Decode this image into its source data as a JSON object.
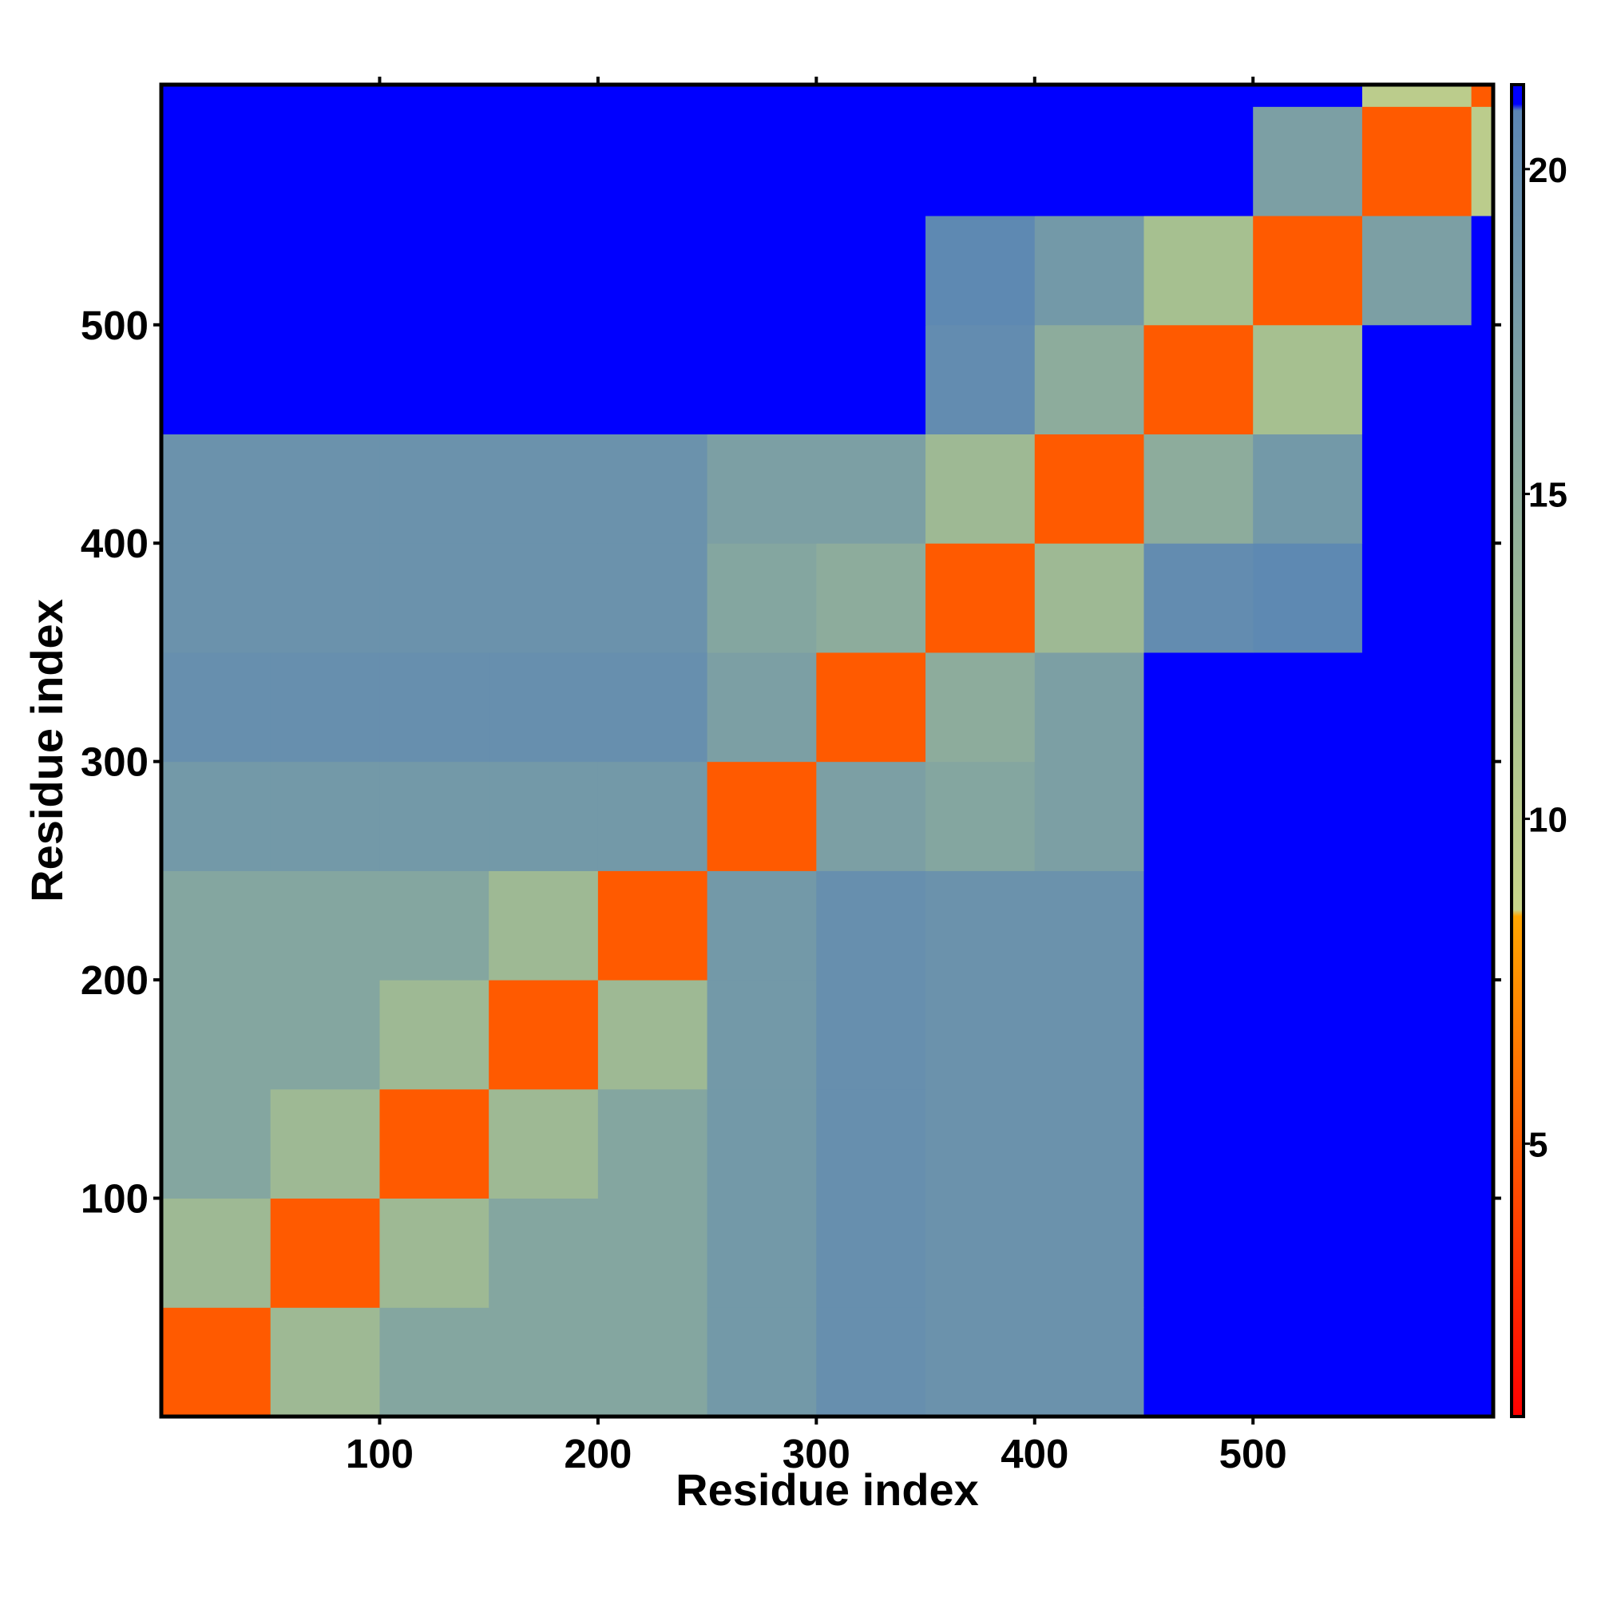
{
  "chart_data": {
    "type": "heatmap",
    "x_label": "Residue index",
    "y_label": "Residue index",
    "xbins": [
      0,
      50,
      100,
      150,
      200,
      250,
      300,
      350,
      400,
      450,
      500,
      550,
      600,
      610
    ],
    "ybins": [
      0,
      50,
      100,
      150,
      200,
      250,
      300,
      350,
      400,
      450,
      500,
      550,
      600,
      610
    ],
    "matrix": [
      [
        5,
        13,
        16,
        16,
        16,
        18,
        19.5,
        19,
        19,
        21,
        21.3,
        21.3,
        21.3
      ],
      [
        13,
        5,
        13,
        16,
        16,
        18,
        19.5,
        19,
        19,
        21,
        21.3,
        21.3,
        21.3
      ],
      [
        16,
        13,
        5,
        13,
        16,
        18,
        19.5,
        19,
        19,
        21,
        21.3,
        21.3,
        21.3
      ],
      [
        16,
        16,
        13,
        5,
        13,
        18,
        19.5,
        19,
        19,
        21,
        21.3,
        21.3,
        21.3
      ],
      [
        16,
        16,
        16,
        13,
        5,
        18,
        19.5,
        19,
        19,
        21,
        21.3,
        21.3,
        21.3
      ],
      [
        18,
        18,
        18,
        18,
        18,
        5,
        17,
        16,
        17,
        21,
        21.3,
        21.3,
        21.3
      ],
      [
        19.5,
        19.5,
        19.5,
        19.5,
        19.5,
        17,
        5,
        15,
        17,
        21.3,
        21.3,
        21.3,
        21.3
      ],
      [
        19,
        19,
        19,
        19,
        19,
        16,
        15,
        5,
        13,
        20,
        20.5,
        21.3,
        21.3
      ],
      [
        19,
        19,
        19,
        19,
        19,
        17,
        17,
        13,
        5,
        15,
        18,
        21,
        21.3
      ],
      [
        21,
        21,
        21,
        21,
        21,
        21,
        21.3,
        20,
        15,
        5,
        12,
        21,
        21.3
      ],
      [
        21.3,
        21.3,
        21.3,
        21.3,
        21.3,
        21.3,
        21.3,
        20.5,
        18,
        12,
        5,
        17,
        21.3
      ],
      [
        21.3,
        21.3,
        21.3,
        21.3,
        21.3,
        21.3,
        21.3,
        21.3,
        21,
        21,
        17,
        5,
        10
      ],
      [
        21.3,
        21.3,
        21.3,
        21.3,
        21.3,
        21.3,
        21.3,
        21.3,
        21.3,
        21.3,
        21.3,
        10,
        5
      ]
    ],
    "xlim": [
      0,
      610
    ],
    "ylim": [
      0,
      610
    ],
    "xticks": [
      100,
      200,
      300,
      400,
      500
    ],
    "yticks": [
      100,
      200,
      300,
      400,
      500
    ],
    "zlim": [
      0.8,
      21.3
    ],
    "colorbar_ticks": [
      5,
      10,
      15,
      20
    ],
    "colorscale": [
      {
        "value": 0.8,
        "color": "#ff0000"
      },
      {
        "value": 5,
        "color": "#ff5a00"
      },
      {
        "value": 8.5,
        "color": "#ffa500"
      },
      {
        "value": 8.6,
        "color": "#c9d58a"
      },
      {
        "value": 12,
        "color": "#a6c090"
      },
      {
        "value": 20.9,
        "color": "#5b86b4"
      },
      {
        "value": 21,
        "color": "#0000ff"
      },
      {
        "value": 21.3,
        "color": "#0000ff"
      }
    ]
  }
}
